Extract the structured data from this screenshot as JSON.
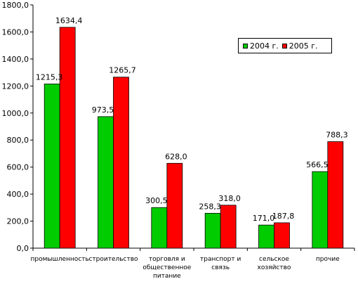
{
  "chart_data": {
    "type": "bar",
    "title": "",
    "xlabel": "",
    "ylabel": "",
    "ylim": [
      0,
      1800
    ],
    "yticks": [
      "0,0",
      "200,0",
      "400,0",
      "600,0",
      "800,0",
      "1000,0",
      "1200,0",
      "1400,0",
      "1600,0",
      "1800,0"
    ],
    "categories": [
      [
        "промышленность"
      ],
      [
        "строительство"
      ],
      [
        "торговля и",
        "общественное",
        "питание"
      ],
      [
        "транспорт и",
        "связь"
      ],
      [
        "сельское",
        "хозяйство"
      ],
      [
        "прочие"
      ]
    ],
    "series": [
      {
        "name": "2004 г.",
        "color": "#00cc00",
        "values": [
          1215.3,
          973.5,
          300.5,
          258.3,
          171.0,
          566.5
        ],
        "labels": [
          "1215,3",
          "973,5",
          "300,5",
          "258,3",
          "171,0",
          "566,5"
        ]
      },
      {
        "name": "2005 г.",
        "color": "#ff0000",
        "values": [
          1634.4,
          1265.7,
          628.0,
          318.0,
          187.8,
          788.3
        ],
        "labels": [
          "1634,4",
          "1265,7",
          "628,0",
          "318,0",
          "187,8",
          "788,3"
        ]
      }
    ],
    "grid": false,
    "legend_position": "top-right"
  }
}
